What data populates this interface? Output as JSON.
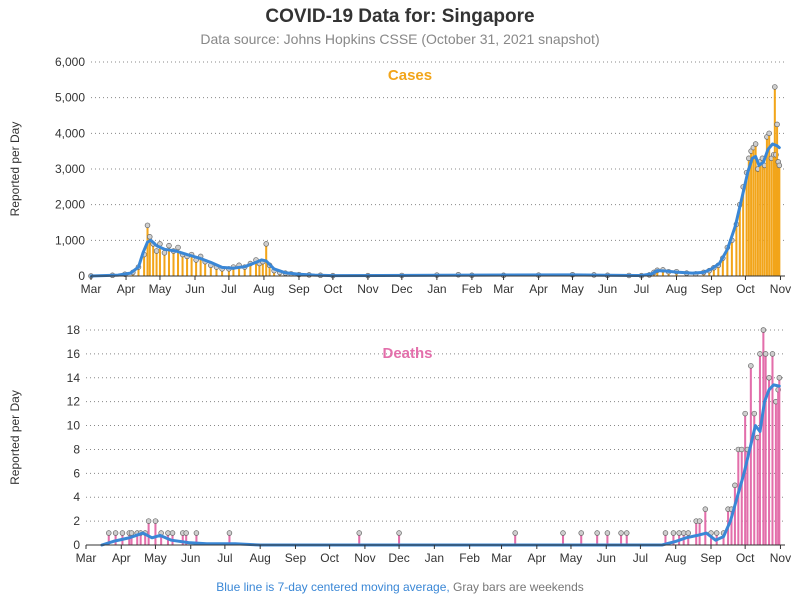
{
  "header": {
    "title": "COVID-19 Data for: Singapore",
    "subtitle": "Data source: Johns Hopkins CSSE (October 31, 2021 snapshot)"
  },
  "footnote": {
    "part1": "Blue line is 7-day centered moving average,",
    "part2": " Gray bars are weekends"
  },
  "colors": {
    "cases": "#f2a51a",
    "deaths": "#e36fab",
    "average": "#3a87d6",
    "grid": "#888888"
  },
  "chart_data": [
    {
      "type": "bar",
      "title": "Cases",
      "ylabel": "Reported per Day",
      "xlabel": "",
      "ylim": [
        0,
        6000
      ],
      "yticks": [
        0,
        1000,
        2000,
        3000,
        4000,
        5000,
        6000
      ],
      "ytick_labels": [
        "0",
        "1,000",
        "2,000",
        "3,000",
        "4,000",
        "5,000",
        "6,000"
      ],
      "x_start": "2020-03-01",
      "x_end": "2021-11-05",
      "month_ticks": [
        "Mar",
        "Apr",
        "May",
        "Jun",
        "Jul",
        "Aug",
        "Sep",
        "Oct",
        "Nov",
        "Dec",
        "Jan",
        "Feb",
        "Mar",
        "Apr",
        "May",
        "Jun",
        "Jul",
        "Aug",
        "Sep",
        "Oct",
        "Nov"
      ],
      "grid": true,
      "legend": "none",
      "points": [
        [
          "2020-03-01",
          0
        ],
        [
          "2020-03-20",
          20
        ],
        [
          "2020-03-31",
          50
        ],
        [
          "2020-04-07",
          100
        ],
        [
          "2020-04-12",
          250
        ],
        [
          "2020-04-17",
          600
        ],
        [
          "2020-04-20",
          1420
        ],
        [
          "2020-04-22",
          1100
        ],
        [
          "2020-04-25",
          900
        ],
        [
          "2020-04-28",
          700
        ],
        [
          "2020-05-01",
          900
        ],
        [
          "2020-05-05",
          650
        ],
        [
          "2020-05-09",
          850
        ],
        [
          "2020-05-13",
          700
        ],
        [
          "2020-05-17",
          800
        ],
        [
          "2020-05-21",
          600
        ],
        [
          "2020-05-25",
          550
        ],
        [
          "2020-05-29",
          600
        ],
        [
          "2020-06-02",
          450
        ],
        [
          "2020-06-06",
          550
        ],
        [
          "2020-06-10",
          400
        ],
        [
          "2020-06-15",
          300
        ],
        [
          "2020-06-20",
          250
        ],
        [
          "2020-06-25",
          200
        ],
        [
          "2020-07-01",
          200
        ],
        [
          "2020-07-05",
          250
        ],
        [
          "2020-07-10",
          300
        ],
        [
          "2020-07-15",
          250
        ],
        [
          "2020-07-20",
          350
        ],
        [
          "2020-07-25",
          450
        ],
        [
          "2020-07-28",
          350
        ],
        [
          "2020-07-31",
          400
        ],
        [
          "2020-08-03",
          900
        ],
        [
          "2020-08-06",
          300
        ],
        [
          "2020-08-10",
          150
        ],
        [
          "2020-08-15",
          100
        ],
        [
          "2020-08-20",
          80
        ],
        [
          "2020-08-25",
          60
        ],
        [
          "2020-09-01",
          40
        ],
        [
          "2020-09-10",
          30
        ],
        [
          "2020-09-20",
          20
        ],
        [
          "2020-10-01",
          10
        ],
        [
          "2020-11-01",
          10
        ],
        [
          "2020-12-01",
          15
        ],
        [
          "2021-01-01",
          25
        ],
        [
          "2021-01-20",
          35
        ],
        [
          "2021-02-01",
          20
        ],
        [
          "2021-03-01",
          20
        ],
        [
          "2021-04-01",
          25
        ],
        [
          "2021-05-01",
          35
        ],
        [
          "2021-05-20",
          30
        ],
        [
          "2021-06-01",
          20
        ],
        [
          "2021-06-20",
          15
        ],
        [
          "2021-07-01",
          10
        ],
        [
          "2021-07-08",
          30
        ],
        [
          "2021-07-12",
          100
        ],
        [
          "2021-07-15",
          160
        ],
        [
          "2021-07-20",
          170
        ],
        [
          "2021-07-25",
          120
        ],
        [
          "2021-08-01",
          120
        ],
        [
          "2021-08-10",
          80
        ],
        [
          "2021-08-18",
          60
        ],
        [
          "2021-08-25",
          100
        ],
        [
          "2021-08-30",
          150
        ],
        [
          "2021-09-03",
          230
        ],
        [
          "2021-09-07",
          300
        ],
        [
          "2021-09-11",
          500
        ],
        [
          "2021-09-15",
          800
        ],
        [
          "2021-09-19",
          1000
        ],
        [
          "2021-09-23",
          1450
        ],
        [
          "2021-09-26",
          2000
        ],
        [
          "2021-09-29",
          2500
        ],
        [
          "2021-10-02",
          2900
        ],
        [
          "2021-10-04",
          3300
        ],
        [
          "2021-10-06",
          3500
        ],
        [
          "2021-10-08",
          3600
        ],
        [
          "2021-10-10",
          3700
        ],
        [
          "2021-10-12",
          3000
        ],
        [
          "2021-10-14",
          3200
        ],
        [
          "2021-10-16",
          3300
        ],
        [
          "2021-10-18",
          3100
        ],
        [
          "2021-10-20",
          3900
        ],
        [
          "2021-10-22",
          4000
        ],
        [
          "2021-10-24",
          3300
        ],
        [
          "2021-10-26",
          3400
        ],
        [
          "2021-10-27",
          5300
        ],
        [
          "2021-10-28",
          3400
        ],
        [
          "2021-10-29",
          4250
        ],
        [
          "2021-10-30",
          3200
        ],
        [
          "2021-10-31",
          3100
        ]
      ],
      "moving_average": [
        [
          "2020-03-01",
          0
        ],
        [
          "2020-03-25",
          25
        ],
        [
          "2020-04-05",
          80
        ],
        [
          "2020-04-12",
          250
        ],
        [
          "2020-04-16",
          650
        ],
        [
          "2020-04-20",
          950
        ],
        [
          "2020-04-23",
          1000
        ],
        [
          "2020-04-28",
          850
        ],
        [
          "2020-05-05",
          750
        ],
        [
          "2020-05-15",
          700
        ],
        [
          "2020-05-25",
          600
        ],
        [
          "2020-06-05",
          500
        ],
        [
          "2020-06-15",
          380
        ],
        [
          "2020-06-25",
          240
        ],
        [
          "2020-07-05",
          220
        ],
        [
          "2020-07-15",
          260
        ],
        [
          "2020-07-25",
          380
        ],
        [
          "2020-07-30",
          450
        ],
        [
          "2020-08-03",
          420
        ],
        [
          "2020-08-10",
          200
        ],
        [
          "2020-08-20",
          90
        ],
        [
          "2020-09-01",
          50
        ],
        [
          "2020-09-15",
          25
        ],
        [
          "2020-10-01",
          10
        ],
        [
          "2021-01-01",
          20
        ],
        [
          "2021-02-01",
          25
        ],
        [
          "2021-05-01",
          30
        ],
        [
          "2021-06-01",
          20
        ],
        [
          "2021-07-01",
          15
        ],
        [
          "2021-07-10",
          60
        ],
        [
          "2021-07-15",
          150
        ],
        [
          "2021-07-22",
          140
        ],
        [
          "2021-08-01",
          110
        ],
        [
          "2021-08-15",
          80
        ],
        [
          "2021-08-25",
          100
        ],
        [
          "2021-09-01",
          200
        ],
        [
          "2021-09-08",
          350
        ],
        [
          "2021-09-15",
          750
        ],
        [
          "2021-09-22",
          1400
        ],
        [
          "2021-09-28",
          2200
        ],
        [
          "2021-10-03",
          2900
        ],
        [
          "2021-10-07",
          3300
        ],
        [
          "2021-10-10",
          3350
        ],
        [
          "2021-10-13",
          3100
        ],
        [
          "2021-10-17",
          3200
        ],
        [
          "2021-10-21",
          3550
        ],
        [
          "2021-10-25",
          3700
        ],
        [
          "2021-10-29",
          3650
        ],
        [
          "2021-10-31",
          3600
        ]
      ]
    },
    {
      "type": "bar",
      "title": "Deaths",
      "ylabel": "Reported per Day",
      "xlabel": "",
      "ylim": [
        0,
        18
      ],
      "yticks": [
        0,
        2,
        4,
        6,
        8,
        10,
        12,
        14,
        16,
        18
      ],
      "ytick_labels": [
        "0",
        "2",
        "4",
        "6",
        "8",
        "10",
        "12",
        "14",
        "16",
        "18"
      ],
      "x_start": "2020-03-01",
      "x_end": "2021-11-05",
      "month_ticks": [
        "Mar",
        "Apr",
        "May",
        "Jun",
        "Jul",
        "Aug",
        "Sep",
        "Oct",
        "Nov",
        "Dec",
        "Jan",
        "Feb",
        "Mar",
        "Apr",
        "May",
        "Jun",
        "Jul",
        "Aug",
        "Sep",
        "Oct",
        "Nov"
      ],
      "grid": true,
      "legend": "none",
      "points": [
        [
          "2020-03-21",
          1
        ],
        [
          "2020-03-27",
          1
        ],
        [
          "2020-04-02",
          1
        ],
        [
          "2020-04-08",
          1
        ],
        [
          "2020-04-10",
          1
        ],
        [
          "2020-04-15",
          1
        ],
        [
          "2020-04-18",
          1
        ],
        [
          "2020-04-22",
          1
        ],
        [
          "2020-04-25",
          2
        ],
        [
          "2020-05-01",
          2
        ],
        [
          "2020-05-06",
          1
        ],
        [
          "2020-05-12",
          1
        ],
        [
          "2020-05-16",
          1
        ],
        [
          "2020-05-25",
          1
        ],
        [
          "2020-05-28",
          1
        ],
        [
          "2020-06-06",
          1
        ],
        [
          "2020-07-05",
          1
        ],
        [
          "2020-10-27",
          1
        ],
        [
          "2020-12-01",
          1
        ],
        [
          "2021-03-13",
          1
        ],
        [
          "2021-04-24",
          1
        ],
        [
          "2021-05-10",
          1
        ],
        [
          "2021-05-24",
          1
        ],
        [
          "2021-06-02",
          1
        ],
        [
          "2021-06-14",
          1
        ],
        [
          "2021-06-19",
          1
        ],
        [
          "2021-07-23",
          1
        ],
        [
          "2021-07-30",
          1
        ],
        [
          "2021-08-04",
          1
        ],
        [
          "2021-08-08",
          1
        ],
        [
          "2021-08-12",
          1
        ],
        [
          "2021-08-19",
          2
        ],
        [
          "2021-08-22",
          2
        ],
        [
          "2021-08-27",
          3
        ],
        [
          "2021-09-01",
          1
        ],
        [
          "2021-09-06",
          1
        ],
        [
          "2021-09-12",
          1
        ],
        [
          "2021-09-16",
          3
        ],
        [
          "2021-09-19",
          3
        ],
        [
          "2021-09-22",
          5
        ],
        [
          "2021-09-25",
          8
        ],
        [
          "2021-09-28",
          8
        ],
        [
          "2021-10-01",
          11
        ],
        [
          "2021-10-03",
          8
        ],
        [
          "2021-10-06",
          15
        ],
        [
          "2021-10-09",
          11
        ],
        [
          "2021-10-12",
          9
        ],
        [
          "2021-10-14",
          16
        ],
        [
          "2021-10-17",
          18
        ],
        [
          "2021-10-19",
          16
        ],
        [
          "2021-10-22",
          14
        ],
        [
          "2021-10-25",
          16
        ],
        [
          "2021-10-28",
          12
        ],
        [
          "2021-10-30",
          13
        ],
        [
          "2021-10-31",
          14
        ]
      ],
      "moving_average": [
        [
          "2020-03-15",
          0
        ],
        [
          "2020-03-25",
          0.3
        ],
        [
          "2020-04-08",
          0.6
        ],
        [
          "2020-04-20",
          1.0
        ],
        [
          "2020-04-28",
          0.6
        ],
        [
          "2020-05-05",
          0.8
        ],
        [
          "2020-05-15",
          0.4
        ],
        [
          "2020-05-30",
          0.2
        ],
        [
          "2020-06-15",
          0.1
        ],
        [
          "2020-07-10",
          0.1
        ],
        [
          "2020-08-01",
          0
        ],
        [
          "2021-07-20",
          0
        ],
        [
          "2021-08-01",
          0.3
        ],
        [
          "2021-08-10",
          0.6
        ],
        [
          "2021-08-20",
          0.8
        ],
        [
          "2021-08-28",
          1.0
        ],
        [
          "2021-09-05",
          0.4
        ],
        [
          "2021-09-12",
          0.7
        ],
        [
          "2021-09-18",
          2.0
        ],
        [
          "2021-09-24",
          4.0
        ],
        [
          "2021-09-30",
          6.0
        ],
        [
          "2021-10-05",
          8.0
        ],
        [
          "2021-10-10",
          10.0
        ],
        [
          "2021-10-14",
          9.5
        ],
        [
          "2021-10-18",
          12.0
        ],
        [
          "2021-10-22",
          13.0
        ],
        [
          "2021-10-26",
          13.4
        ],
        [
          "2021-10-31",
          13.3
        ]
      ]
    }
  ]
}
